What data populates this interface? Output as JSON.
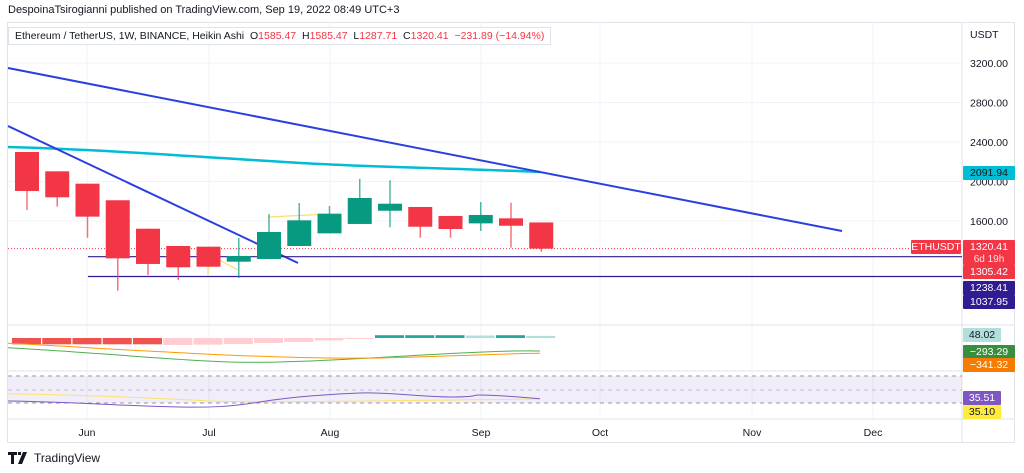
{
  "publisher_line": "DespoinaTsirogianni published on TradingView.com, Sep 19, 2022 08:49 UTC+3",
  "legend": {
    "symbol": "Ethereum / TetherUS, 1W, BINANCE, Heikin Ashi",
    "o_label": "O",
    "o": "1585.47",
    "h_label": "H",
    "h": "1585.47",
    "l_label": "L",
    "l": "1287.71",
    "c_label": "C",
    "c": "1320.41",
    "change": "−231.89 (−14.94%)"
  },
  "footer": {
    "brand": "TradingView"
  },
  "colors": {
    "up": "#089981",
    "down": "#f23645",
    "trend": "#2a3fe0",
    "ma": "#00bcd4",
    "level": "#311b92"
  },
  "chart_data": {
    "type": "candlestick",
    "title": "Ethereum / TetherUS, 1W, BINANCE, Heikin Ashi",
    "currency": "USDT",
    "y_ticks": [
      "3200.00",
      "2800.00",
      "2400.00",
      "2000.00",
      "1600.00"
    ],
    "y_tick_values": [
      3200,
      2800,
      2400,
      2000,
      1600
    ],
    "x_labels": [
      "Jun",
      "Jul",
      "Aug",
      "Sep",
      "Oct",
      "Nov",
      "Dec"
    ],
    "candles": [
      [
        2299,
        2299,
        1711,
        1904
      ],
      [
        2103,
        2103,
        1745,
        1840
      ],
      [
        1978,
        1978,
        1431,
        1644
      ],
      [
        1810,
        1810,
        894,
        1222
      ],
      [
        1522,
        1522,
        1053,
        1165
      ],
      [
        1347,
        1347,
        1002,
        1131
      ],
      [
        1340,
        1340,
        1137,
        1137
      ],
      [
        1188,
        1428,
        1023,
        1246
      ],
      [
        1215,
        1671,
        1215,
        1489
      ],
      [
        1347,
        1782,
        1347,
        1607
      ],
      [
        1475,
        1752,
        1475,
        1674
      ],
      [
        1570,
        2028,
        1570,
        1833
      ],
      [
        1704,
        2012,
        1536,
        1775
      ],
      [
        1742,
        1742,
        1431,
        1542
      ],
      [
        1651,
        1651,
        1431,
        1519
      ],
      [
        1576,
        1792,
        1499,
        1661
      ],
      [
        1627,
        1785,
        1330,
        1552
      ],
      [
        1585.47,
        1585.47,
        1287.71,
        1320.41
      ]
    ],
    "price_labels": [
      {
        "text": "2091.94",
        "sub": "",
        "bg": "#00bcd4",
        "fg": "#131722"
      },
      {
        "text": "1320.41",
        "sub": "6d 19h",
        "bg": "#f23645",
        "fg": "#ffffff"
      },
      {
        "text": "1305.42",
        "sub": "",
        "bg": "#f23645",
        "fg": "#ffffff"
      },
      {
        "text": "1238.41",
        "sub": "",
        "bg": "#311b92",
        "fg": "#ffffff"
      },
      {
        "text": "1037.95",
        "sub": "",
        "bg": "#311b92",
        "fg": "#ffffff"
      }
    ],
    "symbol_tag": "ETHUSDT",
    "horizontal_levels": [
      1238.41,
      1037.95
    ],
    "macd": {
      "histogram": [
        -90,
        -90,
        -90,
        -90,
        -90,
        -100,
        -95,
        -85,
        -70,
        -55,
        -35,
        -15,
        40,
        40,
        40,
        35,
        40,
        30
      ],
      "labels": [
        {
          "text": "48.02",
          "bg": "#b2dfdb",
          "fg": "#131722"
        },
        {
          "text": "−293.29",
          "bg": "#388e3c",
          "fg": "#ffffff"
        },
        {
          "text": "−341.32",
          "bg": "#f57c00",
          "fg": "#ffffff"
        }
      ]
    },
    "rsi": {
      "labels": [
        {
          "text": "35.51",
          "bg": "#7e57c2",
          "fg": "#ffffff"
        },
        {
          "text": "35.10",
          "bg": "#ffeb3b",
          "fg": "#131722"
        }
      ]
    }
  }
}
